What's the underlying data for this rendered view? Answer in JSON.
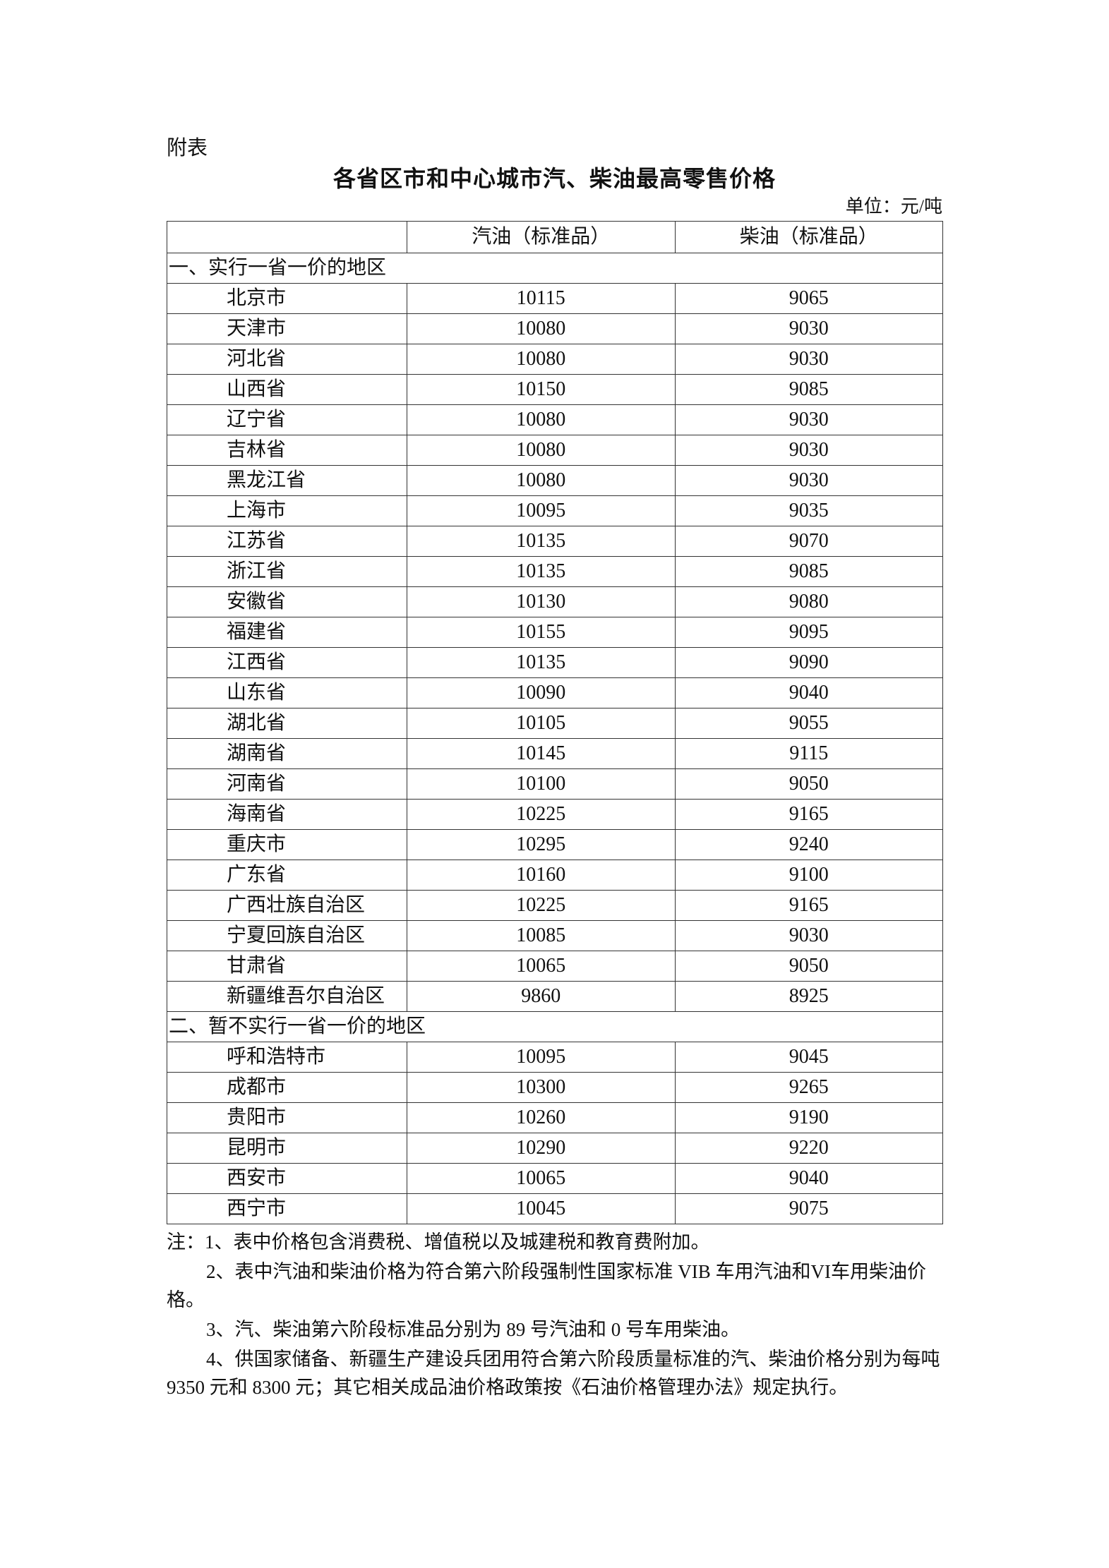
{
  "appendix_label": "附表",
  "title": "各省区市和中心城市汽、柴油最高零售价格",
  "unit": "单位：元/吨",
  "table": {
    "headers": [
      "",
      "汽油（标准品）",
      "柴油（标准品）"
    ],
    "sections": [
      {
        "label": "一、实行一省一价的地区",
        "rows": [
          [
            "北京市",
            "10115",
            "9065"
          ],
          [
            "天津市",
            "10080",
            "9030"
          ],
          [
            "河北省",
            "10080",
            "9030"
          ],
          [
            "山西省",
            "10150",
            "9085"
          ],
          [
            "辽宁省",
            "10080",
            "9030"
          ],
          [
            "吉林省",
            "10080",
            "9030"
          ],
          [
            "黑龙江省",
            "10080",
            "9030"
          ],
          [
            "上海市",
            "10095",
            "9035"
          ],
          [
            "江苏省",
            "10135",
            "9070"
          ],
          [
            "浙江省",
            "10135",
            "9085"
          ],
          [
            "安徽省",
            "10130",
            "9080"
          ],
          [
            "福建省",
            "10155",
            "9095"
          ],
          [
            "江西省",
            "10135",
            "9090"
          ],
          [
            "山东省",
            "10090",
            "9040"
          ],
          [
            "湖北省",
            "10105",
            "9055"
          ],
          [
            "湖南省",
            "10145",
            "9115"
          ],
          [
            "河南省",
            "10100",
            "9050"
          ],
          [
            "海南省",
            "10225",
            "9165"
          ],
          [
            "重庆市",
            "10295",
            "9240"
          ],
          [
            "广东省",
            "10160",
            "9100"
          ],
          [
            "广西壮族自治区",
            "10225",
            "9165"
          ],
          [
            "宁夏回族自治区",
            "10085",
            "9030"
          ],
          [
            "甘肃省",
            "10065",
            "9050"
          ],
          [
            "新疆维吾尔自治区",
            "9860",
            "8925"
          ]
        ]
      },
      {
        "label": "二、暂不实行一省一价的地区",
        "rows": [
          [
            "呼和浩特市",
            "10095",
            "9045"
          ],
          [
            "成都市",
            "10300",
            "9265"
          ],
          [
            "贵阳市",
            "10260",
            "9190"
          ],
          [
            "昆明市",
            "10290",
            "9220"
          ],
          [
            "西安市",
            "10065",
            "9040"
          ],
          [
            "西宁市",
            "10045",
            "9075"
          ]
        ]
      }
    ]
  },
  "notes": [
    "注：1、表中价格包含消费税、增值税以及城建税和教育费附加。",
    "2、表中汽油和柴油价格为符合第六阶段强制性国家标准 VIB 车用汽油和VI车用柴油价格。",
    "3、汽、柴油第六阶段标准品分别为 89 号汽油和 0 号车用柴油。",
    "4、供国家储备、新疆生产建设兵团用符合第六阶段质量标准的汽、柴油价格分别为每吨 9350 元和 8300 元；其它相关成品油价格政策按《石油价格管理办法》规定执行。"
  ]
}
